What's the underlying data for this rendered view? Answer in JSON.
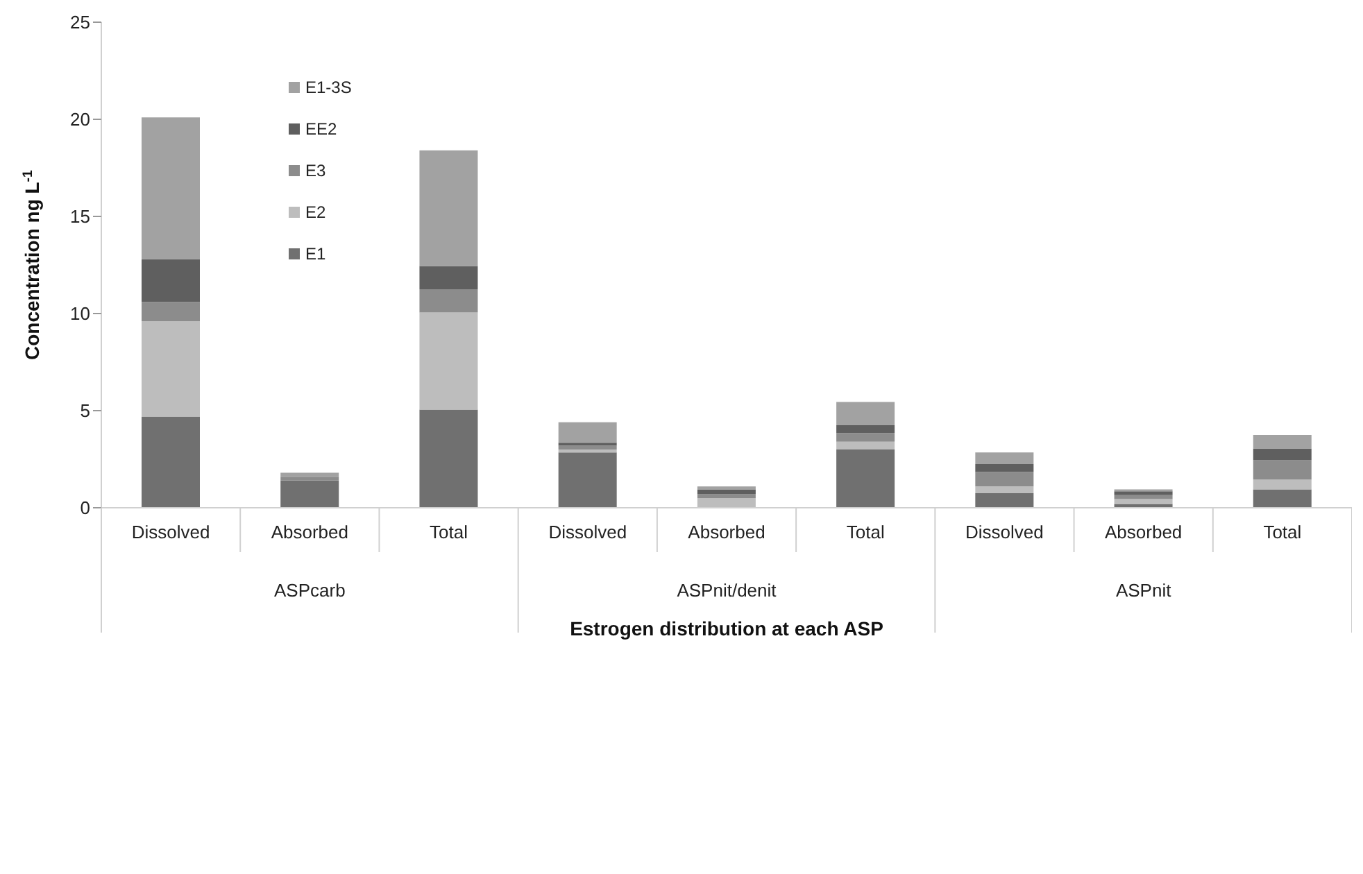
{
  "chart_data": {
    "type": "bar",
    "stacked": true,
    "xlabel": "Estrogen distribution at each ASP",
    "ylabel": "Concentration ng L$^{-1}$",
    "categories": [
      "Dissolved",
      "Absorbed",
      "Total",
      "Dissolved",
      "Absorbed",
      "Total",
      "Dissolved",
      "Absorbed",
      "Total"
    ],
    "annotations": [
      "ASPcarb",
      "ASPnit/denit",
      "ASPnit"
    ],
    "series": [
      {
        "name": "E1",
        "color": "#707070",
        "values": [
          4.7,
          1.4,
          5.05,
          2.85,
          null,
          3.0,
          0.75,
          0.2,
          0.95
        ]
      },
      {
        "name": "E2",
        "color": "#bdbdbd",
        "values": [
          4.9,
          0,
          5.0,
          0.15,
          0.5,
          0.4,
          0.35,
          0.25,
          0.5
        ]
      },
      {
        "name": "E3",
        "color": "#8c8c8c",
        "values": [
          1.0,
          0.2,
          1.2,
          0.2,
          0.2,
          0.45,
          0.75,
          0.2,
          1.0
        ]
      },
      {
        "name": "EE2",
        "color": "#5f5f5f",
        "values": [
          2.2,
          0,
          1.2,
          0.15,
          0.25,
          0.4,
          0.4,
          0.2,
          0.6
        ]
      },
      {
        "name": "E1-3S",
        "color": "#a2a2a2",
        "values": [
          7.3,
          0.2,
          5.95,
          1.05,
          0.15,
          1.2,
          0.6,
          0.1,
          0.7
        ]
      }
    ],
    "ylim": [
      0,
      25
    ],
    "yticks": [
      0,
      5,
      10,
      15,
      20,
      25
    ],
    "legend": "top left"
  }
}
